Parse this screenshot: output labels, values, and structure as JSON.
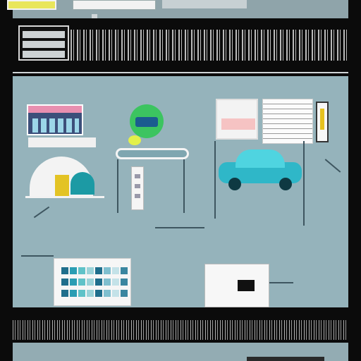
{
  "header": {
    "title": "",
    "subnav": ""
  },
  "board": {
    "title": "",
    "photo_caption": "",
    "green_label": "",
    "docs_badge": "",
    "text_block_left": "",
    "text_block_right": "",
    "label_box": "",
    "bottom_caption": ""
  },
  "colors": {
    "board_bg": "#95b3bb",
    "title_blue": "#1e56c8",
    "accent_green": "#3cc460",
    "accent_teal": "#2fb7c8",
    "accent_yellow": "#e3c324"
  },
  "swatches": [
    "#1f6e8c",
    "#2a9db3",
    "#5fc2c8",
    "#9ad3d9",
    "#1f6e8c",
    "#7fbfcf",
    "#c4e2e8",
    "#3a86a0"
  ]
}
